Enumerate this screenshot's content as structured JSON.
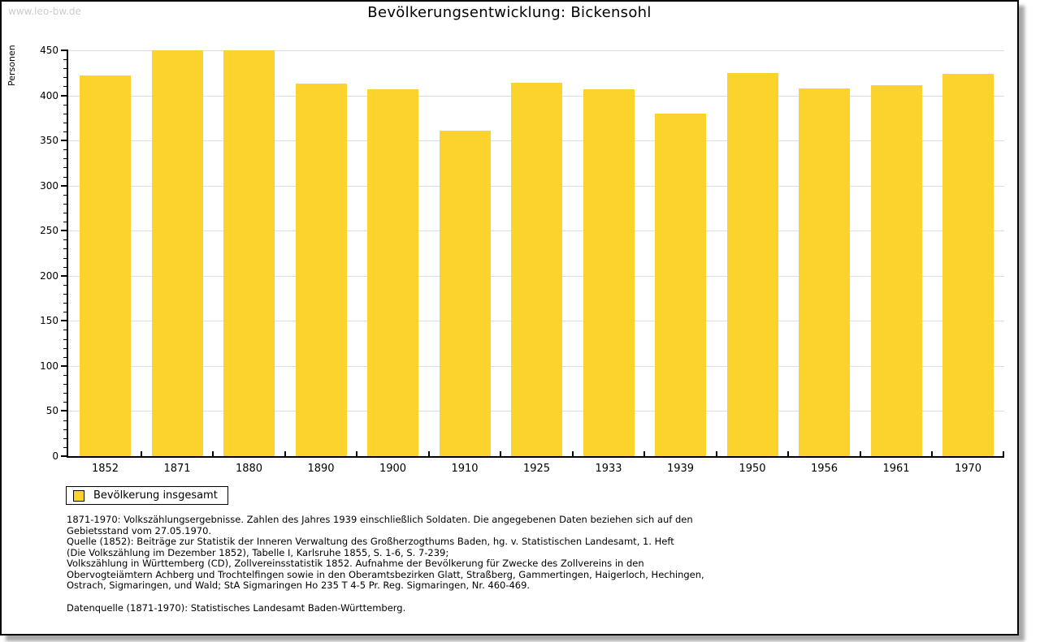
{
  "watermark": "www.leo-bw.de",
  "chart_data": {
    "type": "bar",
    "title": "Bevölkerungsentwicklung: Bickensohl",
    "xlabel": "",
    "ylabel": "Personen",
    "categories": [
      "1852",
      "1871",
      "1880",
      "1890",
      "1900",
      "1910",
      "1925",
      "1933",
      "1939",
      "1950",
      "1956",
      "1961",
      "1970"
    ],
    "values": [
      422,
      450,
      450,
      413,
      407,
      361,
      414,
      407,
      380,
      425,
      408,
      411,
      424
    ],
    "ylim": [
      0,
      450
    ],
    "y_major_step": 50,
    "y_minor_step": 10,
    "grid": "horizontal-major",
    "grid_color": "#dddddd",
    "bar_color": "#fcd32d",
    "legend": {
      "label": "Bevölkerung insgesamt",
      "position": "bottom-left"
    }
  },
  "footnotes": {
    "source_lines": [
      "1871-1970: Volkszählungsergebnisse. Zahlen des Jahres 1939 einschließlich Soldaten. Die angegebenen Daten beziehen sich auf den",
      "Gebietsstand vom 27.05.1970.",
      "Quelle (1852): Beiträge zur Statistik der Inneren Verwaltung des Großherzogthums Baden, hg. v. Statistischen Landesamt, 1. Heft",
      "(Die Volkszählung im Dezember 1852), Tabelle I, Karlsruhe 1855, S. 1-6, S. 7-239;",
      "Volkszählung in Württemberg (CD), Zollvereinsstatistik 1852. Aufnahme der Bevölkerung für Zwecke des Zollvereins in den",
      "Obervogteiämtern Achberg und Trochtelfingen sowie in den Oberamtsbezirken Glatt, Straßberg, Gammertingen, Haigerloch, Hechingen,",
      "Ostrach, Sigmaringen, und Wald; StA Sigmaringen Ho 235 T 4-5 Pr. Reg. Sigmaringen, Nr. 460-469."
    ],
    "data_source": "Datenquelle (1871-1970): Statistisches Landesamt Baden-Württemberg."
  }
}
